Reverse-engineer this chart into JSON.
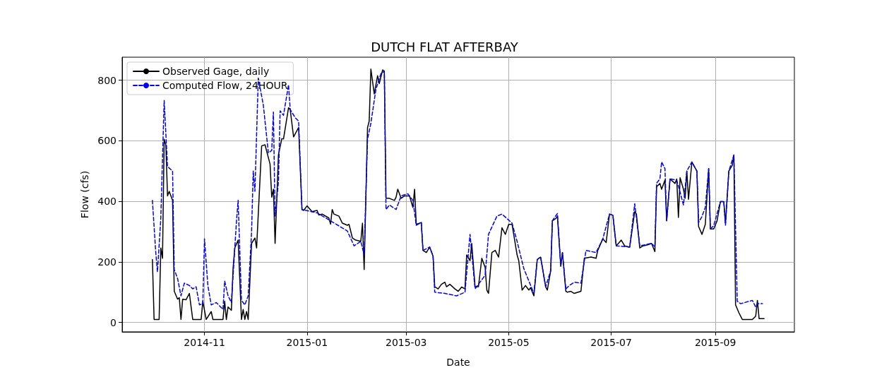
{
  "chart_data": {
    "type": "line",
    "title": "DUTCH FLAT AFTERBAY",
    "xlabel": "Date",
    "ylabel": "Flow (cfs)",
    "xlim": [
      "2014-09-13",
      "2015-10-18"
    ],
    "xticks": [
      "2014-11",
      "2015-01",
      "2015-03",
      "2015-05",
      "2015-07",
      "2015-09"
    ],
    "ylim": [
      -31,
      876
    ],
    "yticks": [
      0,
      200,
      400,
      600,
      800
    ],
    "grid": true,
    "legend": "top left",
    "series": [
      {
        "name": "Observed Gage, daily",
        "color": "#000000",
        "line_style": "solid",
        "x": [
          "2014-10-01",
          "2014-10-02",
          "2014-10-05",
          "2014-10-06",
          "2014-10-07",
          "2014-10-08",
          "2014-10-09",
          "2014-10-10",
          "2014-10-11",
          "2014-10-13",
          "2014-10-14",
          "2014-10-16",
          "2014-10-17",
          "2014-10-18",
          "2014-10-19",
          "2014-10-21",
          "2014-10-23",
          "2014-10-25",
          "2014-10-30",
          "2014-10-31",
          "2014-11-02",
          "2014-11-05",
          "2014-11-06",
          "2014-11-12",
          "2014-11-13",
          "2014-11-14",
          "2014-11-15",
          "2014-11-17",
          "2014-11-18",
          "2014-11-19",
          "2014-11-21",
          "2014-11-23",
          "2014-11-24",
          "2014-11-25",
          "2014-11-26",
          "2014-11-27",
          "2014-11-29",
          "2014-12-01",
          "2014-12-02",
          "2014-12-05",
          "2014-12-07",
          "2014-12-10",
          "2014-12-11",
          "2014-12-12",
          "2014-12-13",
          "2014-12-15",
          "2014-12-17",
          "2014-12-18",
          "2014-12-21",
          "2014-12-22",
          "2014-12-24",
          "2014-12-27",
          "2014-12-29",
          "2014-12-30",
          "2015-01-01",
          "2015-01-04",
          "2015-01-07",
          "2015-01-08",
          "2015-01-10",
          "2015-01-14",
          "2015-01-15",
          "2015-01-16",
          "2015-01-17",
          "2015-01-20",
          "2015-01-22",
          "2015-01-25",
          "2015-01-26",
          "2015-01-28",
          "2015-01-30",
          "2015-02-02",
          "2015-02-03",
          "2015-02-04",
          "2015-02-06",
          "2015-02-07",
          "2015-02-08",
          "2015-02-10",
          "2015-02-12",
          "2015-02-13",
          "2015-02-15",
          "2015-02-16",
          "2015-02-17",
          "2015-02-19",
          "2015-02-22",
          "2015-02-23",
          "2015-02-24",
          "2015-02-26",
          "2015-02-28",
          "2015-03-03",
          "2015-03-05",
          "2015-03-06",
          "2015-03-07",
          "2015-03-10",
          "2015-03-11",
          "2015-03-13",
          "2015-03-15",
          "2015-03-17",
          "2015-03-18",
          "2015-03-20",
          "2015-03-22",
          "2015-03-24",
          "2015-03-25",
          "2015-03-27",
          "2015-03-30",
          "2015-04-01",
          "2015-04-03",
          "2015-04-05",
          "2015-04-06",
          "2015-04-08",
          "2015-04-09",
          "2015-04-11",
          "2015-04-13",
          "2015-04-15",
          "2015-04-17",
          "2015-04-18",
          "2015-04-19",
          "2015-04-21",
          "2015-04-23",
          "2015-04-25",
          "2015-04-27",
          "2015-04-29",
          "2015-05-01",
          "2015-05-03",
          "2015-05-06",
          "2015-05-07",
          "2015-05-09",
          "2015-05-11",
          "2015-05-13",
          "2015-05-14",
          "2015-05-16",
          "2015-05-18",
          "2015-05-20",
          "2015-05-23",
          "2015-05-24",
          "2015-05-26",
          "2015-05-27",
          "2015-05-29",
          "2015-05-30",
          "2015-06-01",
          "2015-06-02",
          "2015-06-04",
          "2015-06-05",
          "2015-06-07",
          "2015-06-09",
          "2015-06-13",
          "2015-06-15",
          "2015-06-19",
          "2015-06-22",
          "2015-06-23",
          "2015-06-26",
          "2015-06-28",
          "2015-06-30",
          "2015-07-02",
          "2015-07-04",
          "2015-07-07",
          "2015-07-09",
          "2015-07-12",
          "2015-07-15",
          "2015-07-16",
          "2015-07-18",
          "2015-07-20",
          "2015-07-23",
          "2015-07-25",
          "2015-07-27",
          "2015-07-28",
          "2015-07-30",
          "2015-07-31",
          "2015-08-02",
          "2015-08-03",
          "2015-08-05",
          "2015-08-08",
          "2015-08-09",
          "2015-08-10",
          "2015-08-11",
          "2015-08-13",
          "2015-08-14",
          "2015-08-15",
          "2015-08-16",
          "2015-08-18",
          "2015-08-21",
          "2015-08-22",
          "2015-08-24",
          "2015-08-26",
          "2015-08-28",
          "2015-08-29",
          "2015-08-31",
          "2015-09-02",
          "2015-09-04",
          "2015-09-06",
          "2015-09-07",
          "2015-09-09",
          "2015-09-11",
          "2015-09-12",
          "2015-09-13",
          "2015-09-15",
          "2015-09-17",
          "2015-09-23",
          "2015-09-25",
          "2015-09-26",
          "2015-09-27",
          "2015-09-30"
        ],
        "values": [
          208,
          10,
          10,
          246,
          212,
          605,
          586,
          418,
          433,
          403,
          103,
          77,
          82,
          10,
          77,
          75,
          96,
          10,
          10,
          70,
          10,
          36,
          10,
          10,
          70,
          10,
          51,
          40,
          178,
          246,
          272,
          10,
          43,
          10,
          36,
          10,
          261,
          279,
          246,
          583,
          587,
          523,
          414,
          440,
          261,
          554,
          607,
          606,
          709,
          703,
          613,
          644,
          373,
          370,
          385,
          366,
          370,
          355,
          358,
          345,
          325,
          373,
          358,
          351,
          328,
          321,
          324,
          279,
          272,
          268,
          328,
          175,
          643,
          665,
          837,
          755,
          815,
          789,
          834,
          830,
          410,
          410,
          403,
          414,
          440,
          410,
          418,
          418,
          380,
          440,
          324,
          330,
          238,
          231,
          249,
          219,
          118,
          111,
          126,
          133,
          118,
          126,
          111,
          103,
          117,
          111,
          223,
          204,
          261,
          118,
          118,
          212,
          182,
          107,
          96,
          231,
          238,
          216,
          313,
          291,
          324,
          324,
          223,
          204,
          107,
          122,
          107,
          115,
          88,
          208,
          216,
          118,
          107,
          171,
          336,
          343,
          351,
          186,
          231,
          103,
          100,
          103,
          96,
          103,
          212,
          216,
          212,
          238,
          276,
          264,
          358,
          354,
          253,
          272,
          253,
          249,
          366,
          358,
          246,
          253,
          257,
          261,
          234,
          448,
          459,
          440,
          470,
          336,
          474,
          459,
          474,
          347,
          478,
          440,
          410,
          500,
          407,
          530,
          500,
          317,
          291,
          324,
          508,
          309,
          309,
          336,
          399,
          399,
          328,
          500,
          519,
          553,
          58,
          32,
          10,
          10,
          21,
          73,
          13,
          13
        ]
      },
      {
        "name": "Computed Flow, 24HOUR",
        "color": "#0000ff",
        "line_style": "dashed",
        "x": [
          "2014-10-01",
          "2014-10-03",
          "2014-10-04",
          "2014-10-06",
          "2014-10-08",
          "2014-10-10",
          "2014-10-13",
          "2014-10-14",
          "2014-10-16",
          "2014-10-18",
          "2014-10-20",
          "2014-10-23",
          "2014-10-25",
          "2014-10-27",
          "2014-10-29",
          "2014-10-31",
          "2014-11-01",
          "2014-11-03",
          "2014-11-05",
          "2014-11-08",
          "2014-11-12",
          "2014-11-13",
          "2014-11-15",
          "2014-11-17",
          "2014-11-20",
          "2014-11-21",
          "2014-11-23",
          "2014-11-25",
          "2014-11-27",
          "2014-11-29",
          "2014-11-30",
          "2014-12-01",
          "2014-12-03",
          "2014-12-06",
          "2014-12-09",
          "2014-12-11",
          "2014-12-12",
          "2014-12-13",
          "2014-12-15",
          "2014-12-16",
          "2014-12-18",
          "2014-12-21",
          "2014-12-22",
          "2014-12-25",
          "2014-12-27",
          "2014-12-29",
          "2015-01-07",
          "2015-01-14",
          "2015-01-25",
          "2015-01-29",
          "2015-02-02",
          "2015-02-04",
          "2015-02-06",
          "2015-02-08",
          "2015-02-11",
          "2015-02-14",
          "2015-02-16",
          "2015-02-17",
          "2015-02-19",
          "2015-02-23",
          "2015-02-26",
          "2015-03-02",
          "2015-03-05",
          "2015-03-07",
          "2015-03-10",
          "2015-03-11",
          "2015-03-15",
          "2015-03-17",
          "2015-03-18",
          "2015-03-24",
          "2015-03-31",
          "2015-04-05",
          "2015-04-08",
          "2015-04-11",
          "2015-04-17",
          "2015-04-19",
          "2015-04-24",
          "2015-04-27",
          "2015-04-30",
          "2015-05-03",
          "2015-05-06",
          "2015-05-10",
          "2015-05-13",
          "2015-05-16",
          "2015-05-18",
          "2015-05-20",
          "2015-05-23",
          "2015-05-26",
          "2015-05-27",
          "2015-05-30",
          "2015-06-01",
          "2015-06-02",
          "2015-06-04",
          "2015-06-06",
          "2015-06-09",
          "2015-06-13",
          "2015-06-16",
          "2015-06-22",
          "2015-06-26",
          "2015-06-30",
          "2015-07-02",
          "2015-07-04",
          "2015-07-12",
          "2015-07-15",
          "2015-07-18",
          "2015-07-25",
          "2015-07-27",
          "2015-07-28",
          "2015-07-30",
          "2015-07-31",
          "2015-08-02",
          "2015-08-03",
          "2015-08-05",
          "2015-08-09",
          "2015-08-11",
          "2015-08-13",
          "2015-08-15",
          "2015-08-18",
          "2015-08-21",
          "2015-08-22",
          "2015-08-24",
          "2015-08-26",
          "2015-08-28",
          "2015-08-29",
          "2015-08-31",
          "2015-09-04",
          "2015-09-06",
          "2015-09-07",
          "2015-09-09",
          "2015-09-12",
          "2015-09-14",
          "2015-09-16",
          "2015-09-23",
          "2015-09-25",
          "2015-09-26",
          "2015-09-29"
        ],
        "values": [
          403,
          231,
          167,
          343,
          733,
          515,
          500,
          175,
          145,
          88,
          130,
          122,
          111,
          118,
          58,
          62,
          276,
          122,
          58,
          66,
          43,
          137,
          88,
          66,
          332,
          403,
          73,
          58,
          88,
          298,
          500,
          433,
          807,
          718,
          560,
          568,
          695,
          351,
          463,
          699,
          684,
          785,
          703,
          676,
          665,
          373,
          362,
          339,
          302,
          253,
          268,
          223,
          605,
          658,
          770,
          822,
          830,
          373,
          388,
          373,
          418,
          425,
          403,
          321,
          330,
          238,
          249,
          219,
          100,
          96,
          88,
          100,
          291,
          111,
          156,
          291,
          351,
          358,
          343,
          328,
          268,
          178,
          137,
          96,
          208,
          216,
          118,
          171,
          336,
          360,
          186,
          231,
          110,
          122,
          133,
          130,
          238,
          231,
          276,
          358,
          354,
          253,
          249,
          392,
          253,
          261,
          250,
          460,
          474,
          530,
          508,
          336,
          474,
          470,
          430,
          388,
          500,
          530,
          500,
          330,
          350,
          380,
          508,
          309,
          320,
          399,
          399,
          321,
          500,
          553,
          70,
          62,
          73,
          51,
          62,
          62
        ]
      }
    ]
  }
}
